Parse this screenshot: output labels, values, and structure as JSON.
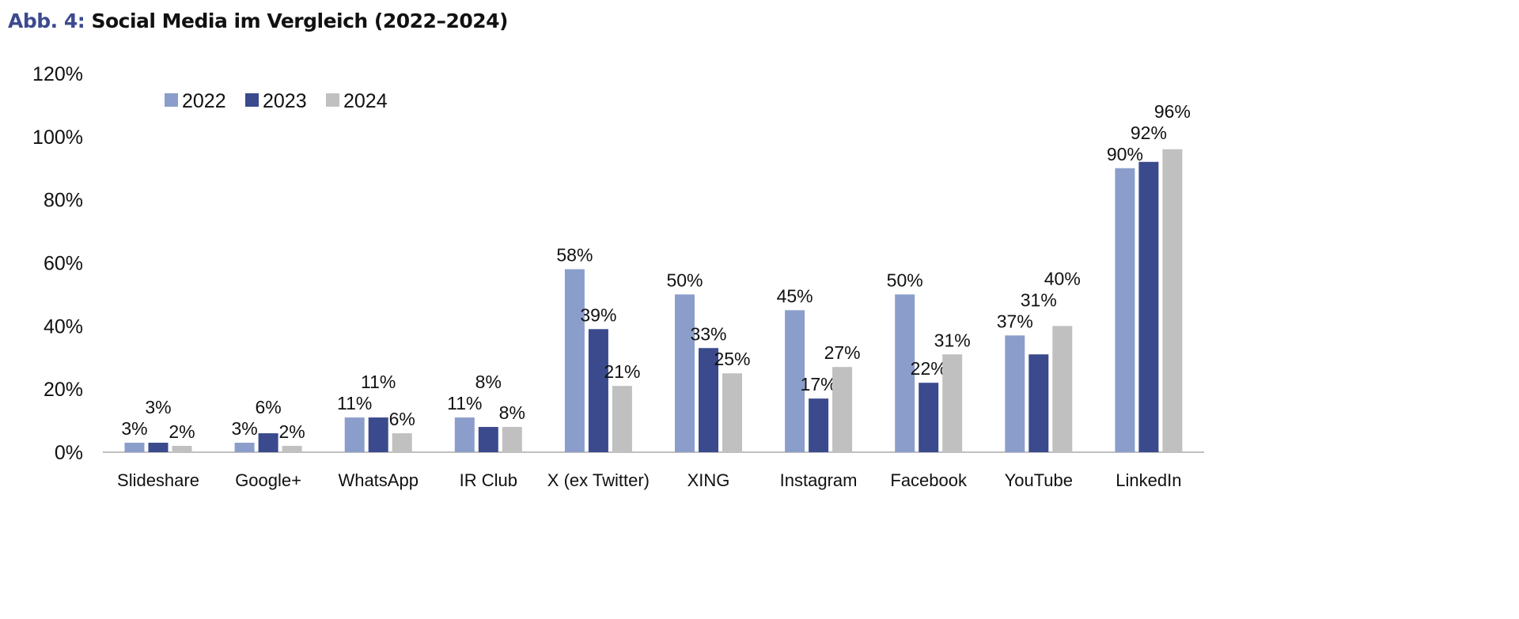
{
  "header": {
    "prefix": "Abb. 4:",
    "title": "Social Media im Vergleich (2022–2024)"
  },
  "chart_data": {
    "type": "bar",
    "title": "Social Media im Vergleich (2022–2024)",
    "xlabel": "",
    "ylabel": "",
    "ylim": [
      0,
      120
    ],
    "yticks": [
      "0%",
      "20%",
      "40%",
      "60%",
      "80%",
      "100%",
      "120%"
    ],
    "grid": false,
    "legend_position": "top-left",
    "categories": [
      "Slideshare",
      "Google+",
      "WhatsApp",
      "IR Club",
      "X (ex Twitter)",
      "XING",
      "Instagram",
      "Facebook",
      "YouTube",
      "LinkedIn"
    ],
    "series": [
      {
        "name": "2022",
        "color": "#8b9ecb",
        "values": [
          3,
          3,
          11,
          11,
          58,
          50,
          45,
          50,
          37,
          90
        ]
      },
      {
        "name": "2023",
        "color": "#3a4a8c",
        "values": [
          3,
          6,
          11,
          8,
          39,
          33,
          17,
          22,
          31,
          92
        ]
      },
      {
        "name": "2024",
        "color": "#c0c0c0",
        "values": [
          2,
          2,
          6,
          8,
          21,
          25,
          27,
          31,
          40,
          96
        ]
      }
    ]
  }
}
